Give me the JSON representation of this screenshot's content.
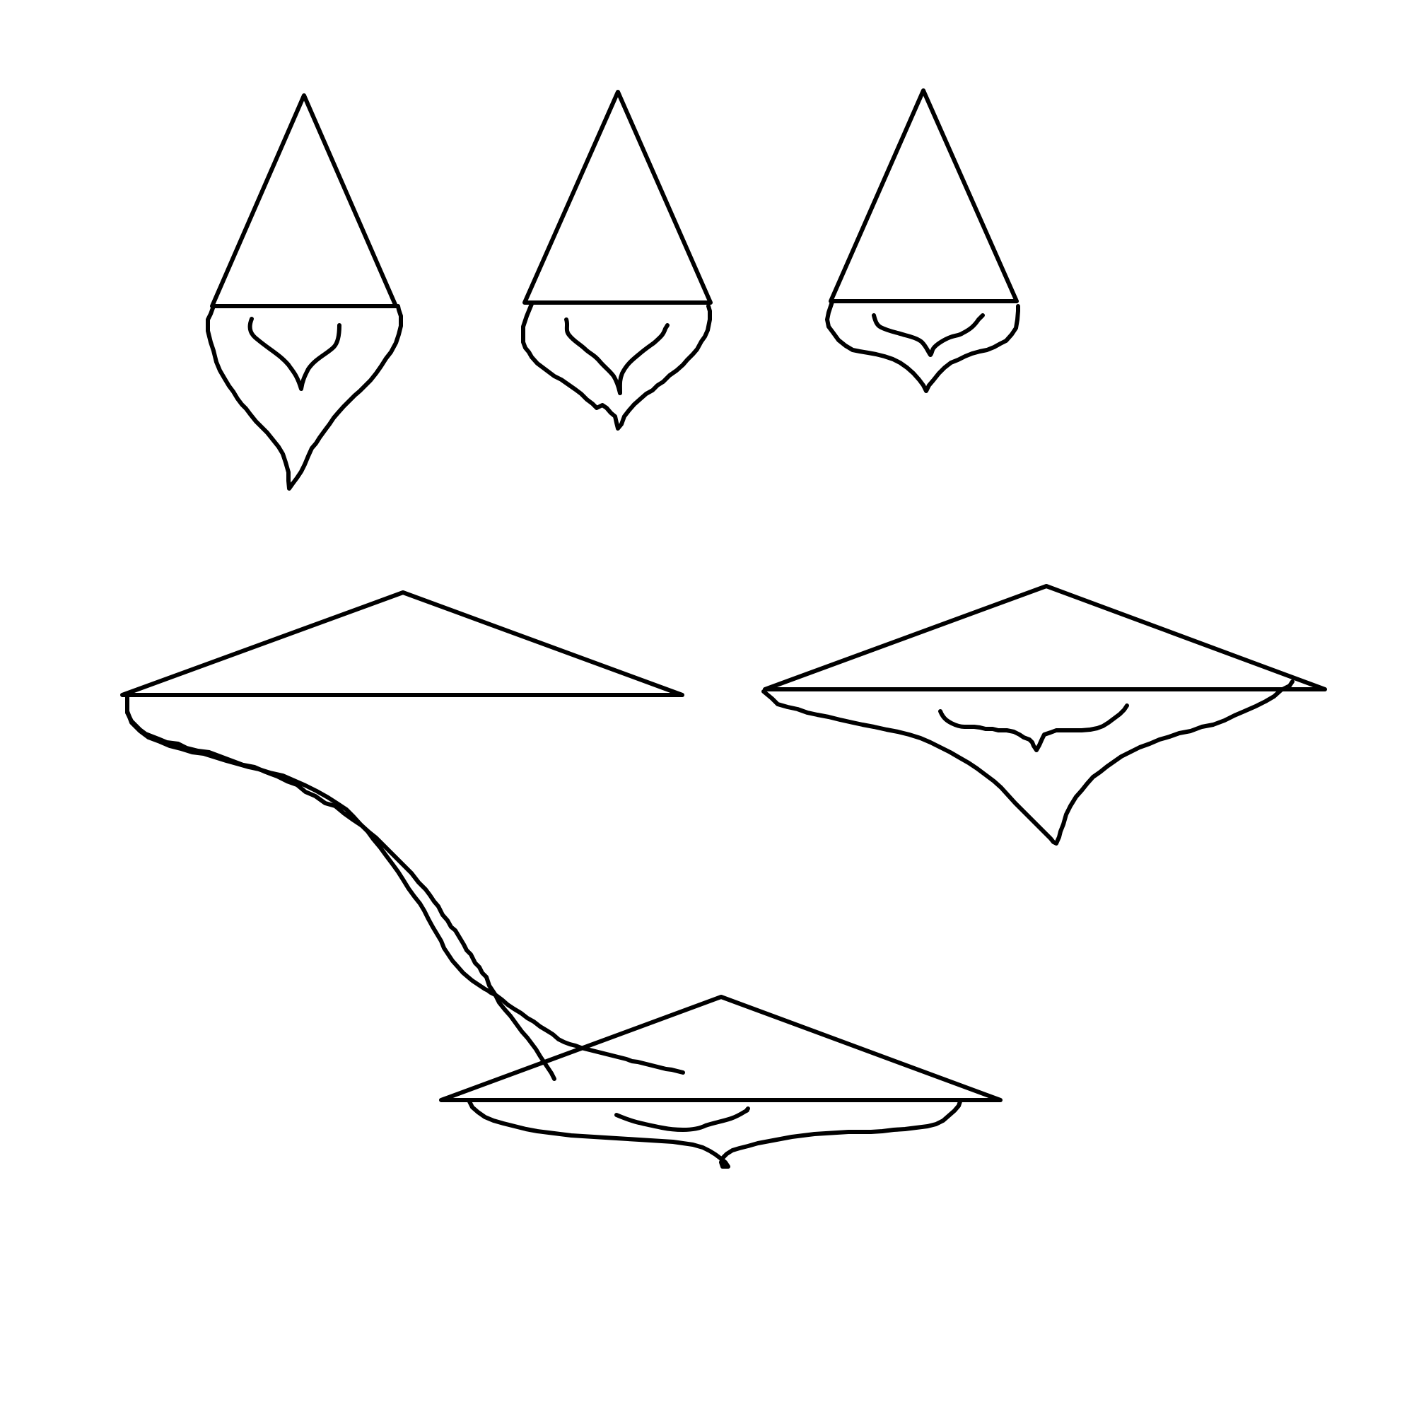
{
  "drawing": {
    "background": "#ffffff",
    "stroke_color": "#000000",
    "figures": [
      {
        "name": "hat-figure-1"
      },
      {
        "name": "hat-figure-2"
      },
      {
        "name": "hat-figure-3"
      },
      {
        "name": "hat-figure-4"
      },
      {
        "name": "hat-figure-5"
      },
      {
        "name": "hat-figure-6"
      }
    ]
  }
}
